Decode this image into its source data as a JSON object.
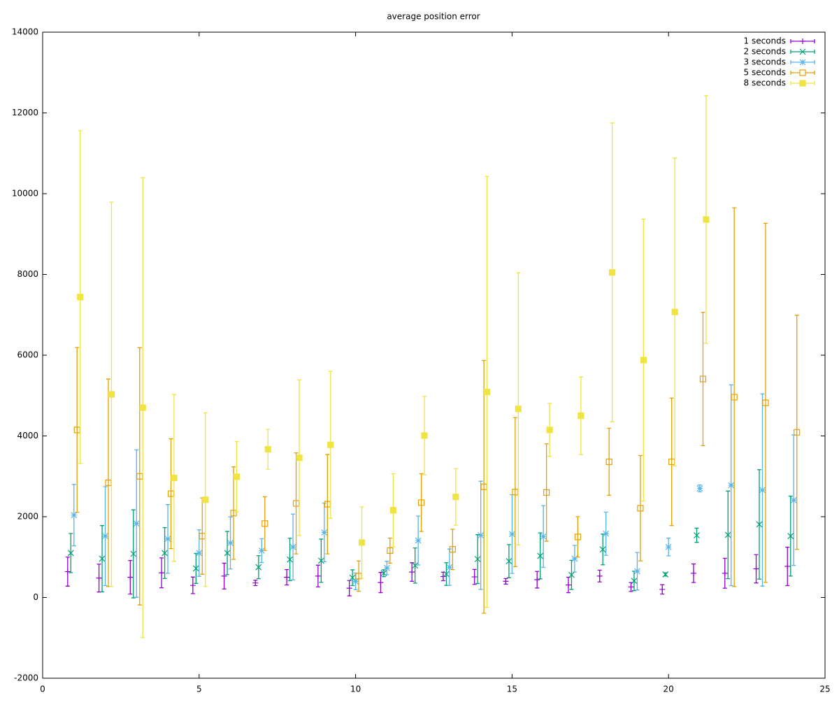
{
  "chart_data": {
    "type": "errorbar",
    "title": "average position error",
    "xlim": [
      0,
      25
    ],
    "xticks": [
      0,
      5,
      10,
      15,
      20,
      25
    ],
    "ylim": [
      -2000,
      14000
    ],
    "yticks": [
      -2000,
      0,
      2000,
      4000,
      6000,
      8000,
      10000,
      12000,
      14000
    ],
    "grid": false,
    "legend": "top-right",
    "series": [
      {
        "name": "1 seconds",
        "color": "#9400d3",
        "marker": "plus",
        "x": [
          0.8,
          1.8,
          2.8,
          3.8,
          4.8,
          5.8,
          6.8,
          7.8,
          8.8,
          9.8,
          10.8,
          11.8,
          12.8,
          13.8,
          14.8,
          15.8,
          16.8,
          17.8,
          18.8,
          19.8,
          20.8,
          21.8,
          22.8,
          23.8
        ],
        "values": [
          640,
          480,
          500,
          610,
          300,
          530,
          360,
          500,
          530,
          230,
          370,
          630,
          520,
          510,
          400,
          440,
          310,
          530,
          260,
          200,
          600,
          600,
          710,
          770
        ],
        "errors": [
          360,
          345,
          415,
          370,
          205,
          320,
          65,
          190,
          270,
          190,
          250,
          230,
          105,
          185,
          70,
          205,
          190,
          145,
          110,
          115,
          230,
          370,
          350,
          475
        ]
      },
      {
        "name": "2 seconds",
        "color": "#009e73",
        "marker": "cross",
        "x": [
          0.9,
          1.9,
          2.9,
          3.9,
          4.9,
          5.9,
          6.9,
          7.9,
          8.9,
          9.9,
          10.9,
          11.9,
          12.9,
          13.9,
          14.9,
          15.9,
          16.9,
          17.9,
          18.9,
          19.9,
          20.9,
          21.9,
          22.9,
          23.9
        ],
        "values": [
          1100,
          960,
          1080,
          1100,
          720,
          1100,
          750,
          940,
          910,
          490,
          600,
          790,
          580,
          950,
          900,
          1030,
          560,
          1190,
          410,
          570,
          1540,
          1550,
          1810,
          1520
        ],
        "errors": [
          485,
          820,
          1090,
          630,
          370,
          535,
          285,
          525,
          535,
          195,
          85,
          435,
          280,
          605,
          410,
          570,
          360,
          380,
          240,
          40,
          175,
          1085,
          1355,
          990
        ]
      },
      {
        "name": "3 seconds",
        "color": "#56b4e9",
        "marker": "star",
        "x": [
          1,
          2,
          3,
          4,
          5,
          6,
          7,
          8,
          9,
          10,
          11,
          12,
          13,
          14,
          15,
          16,
          17,
          18,
          19,
          20,
          21,
          22,
          23,
          24
        ],
        "values": [
          2040,
          1520,
          1830,
          1450,
          1100,
          1350,
          1160,
          1250,
          1610,
          400,
          730,
          1410,
          750,
          1540,
          1570,
          1510,
          960,
          1580,
          650,
          1250,
          2700,
          2780,
          2660,
          2410
        ],
        "errors": [
          760,
          1225,
          1825,
          850,
          575,
          645,
          295,
          815,
          725,
          205,
          165,
          605,
          450,
          1340,
          975,
          765,
          330,
          535,
          465,
          220,
          85,
          2485,
          2380,
          1615
        ]
      },
      {
        "name": "5 seconds",
        "color": "#e69f00",
        "marker": "square-open",
        "x": [
          1.1,
          2.1,
          3.1,
          4.1,
          5.1,
          6.1,
          7.1,
          8.1,
          9.1,
          10.1,
          11.1,
          12.1,
          13.1,
          14.1,
          15.1,
          16.1,
          17.1,
          18.1,
          19.1,
          20.1,
          21.1,
          22.1,
          23.1,
          24.1
        ],
        "values": [
          4150,
          2840,
          3000,
          2570,
          1520,
          2090,
          1830,
          2330,
          2310,
          530,
          1160,
          2350,
          1190,
          2740,
          2610,
          2600,
          1500,
          3360,
          2210,
          3360,
          5410,
          4960,
          4820,
          4090
        ],
        "errors": [
          2040,
          2570,
          3185,
          1360,
          945,
          1145,
          665,
          1250,
          1230,
          375,
          310,
          715,
          500,
          3130,
          1845,
          1205,
          500,
          830,
          1305,
          1580,
          1650,
          4690,
          4445,
          2900
        ]
      },
      {
        "name": "8 seconds",
        "color": "#f0e442",
        "marker": "square-filled",
        "x": [
          1.2,
          2.2,
          3.2,
          4.2,
          5.2,
          6.2,
          7.2,
          8.2,
          9.2,
          10.2,
          11.2,
          12.2,
          13.2,
          14.2,
          15.2,
          16.2,
          17.2,
          18.2,
          19.2,
          20.2,
          21.2
        ],
        "values": [
          7440,
          5030,
          4700,
          2960,
          2420,
          2990,
          3670,
          3460,
          3780,
          1360,
          2160,
          4010,
          2490,
          5090,
          4670,
          4150,
          4500,
          8050,
          5880,
          7070,
          9360
        ],
        "errors": [
          4120,
          4760,
          5695,
          2065,
          2150,
          870,
          495,
          1925,
          1820,
          885,
          905,
          970,
          700,
          5335,
          3370,
          655,
          960,
          3700,
          3490,
          3810,
          3065
        ]
      }
    ]
  }
}
